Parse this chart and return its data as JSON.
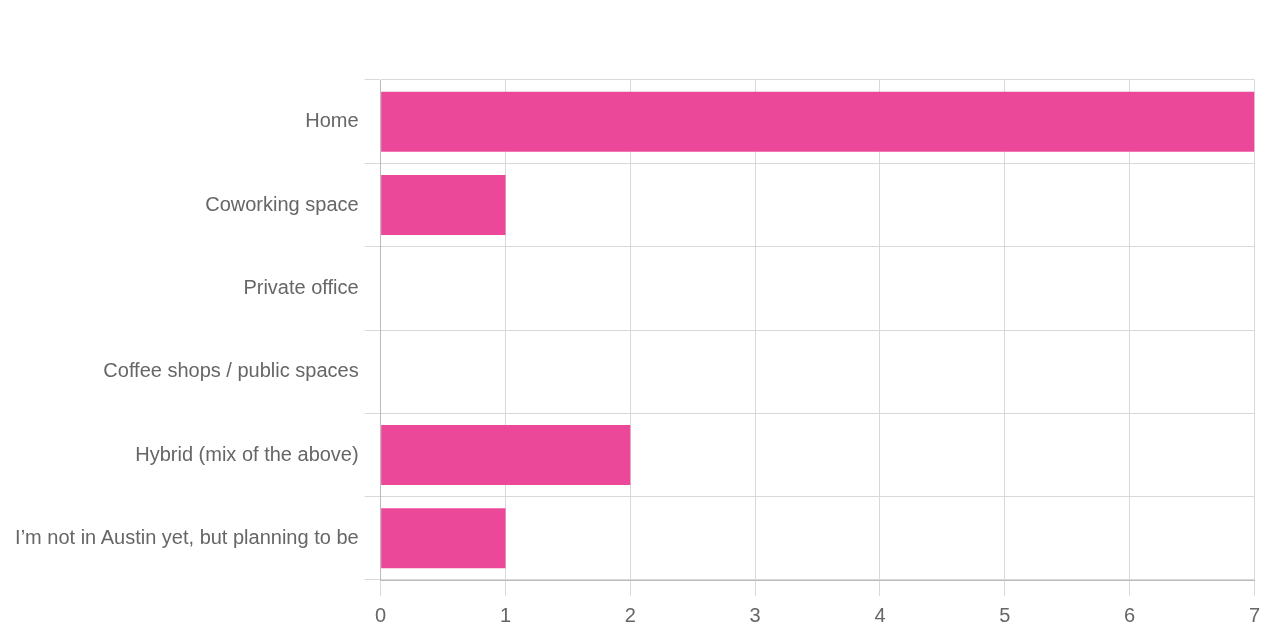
{
  "chart_data": {
    "type": "bar",
    "orientation": "horizontal",
    "categories": [
      "Home",
      "Coworking space",
      "Private office",
      "Coffee shops / public spaces",
      "Hybrid (mix of the above)",
      "I’m not in Austin yet, but planning to be"
    ],
    "values": [
      7,
      1,
      0,
      0,
      2,
      1
    ],
    "color": "#ec4899",
    "xlim": [
      0,
      7
    ],
    "xticks": [
      0,
      1,
      2,
      3,
      4,
      5,
      6,
      7
    ],
    "grid": true,
    "legend": false
  }
}
